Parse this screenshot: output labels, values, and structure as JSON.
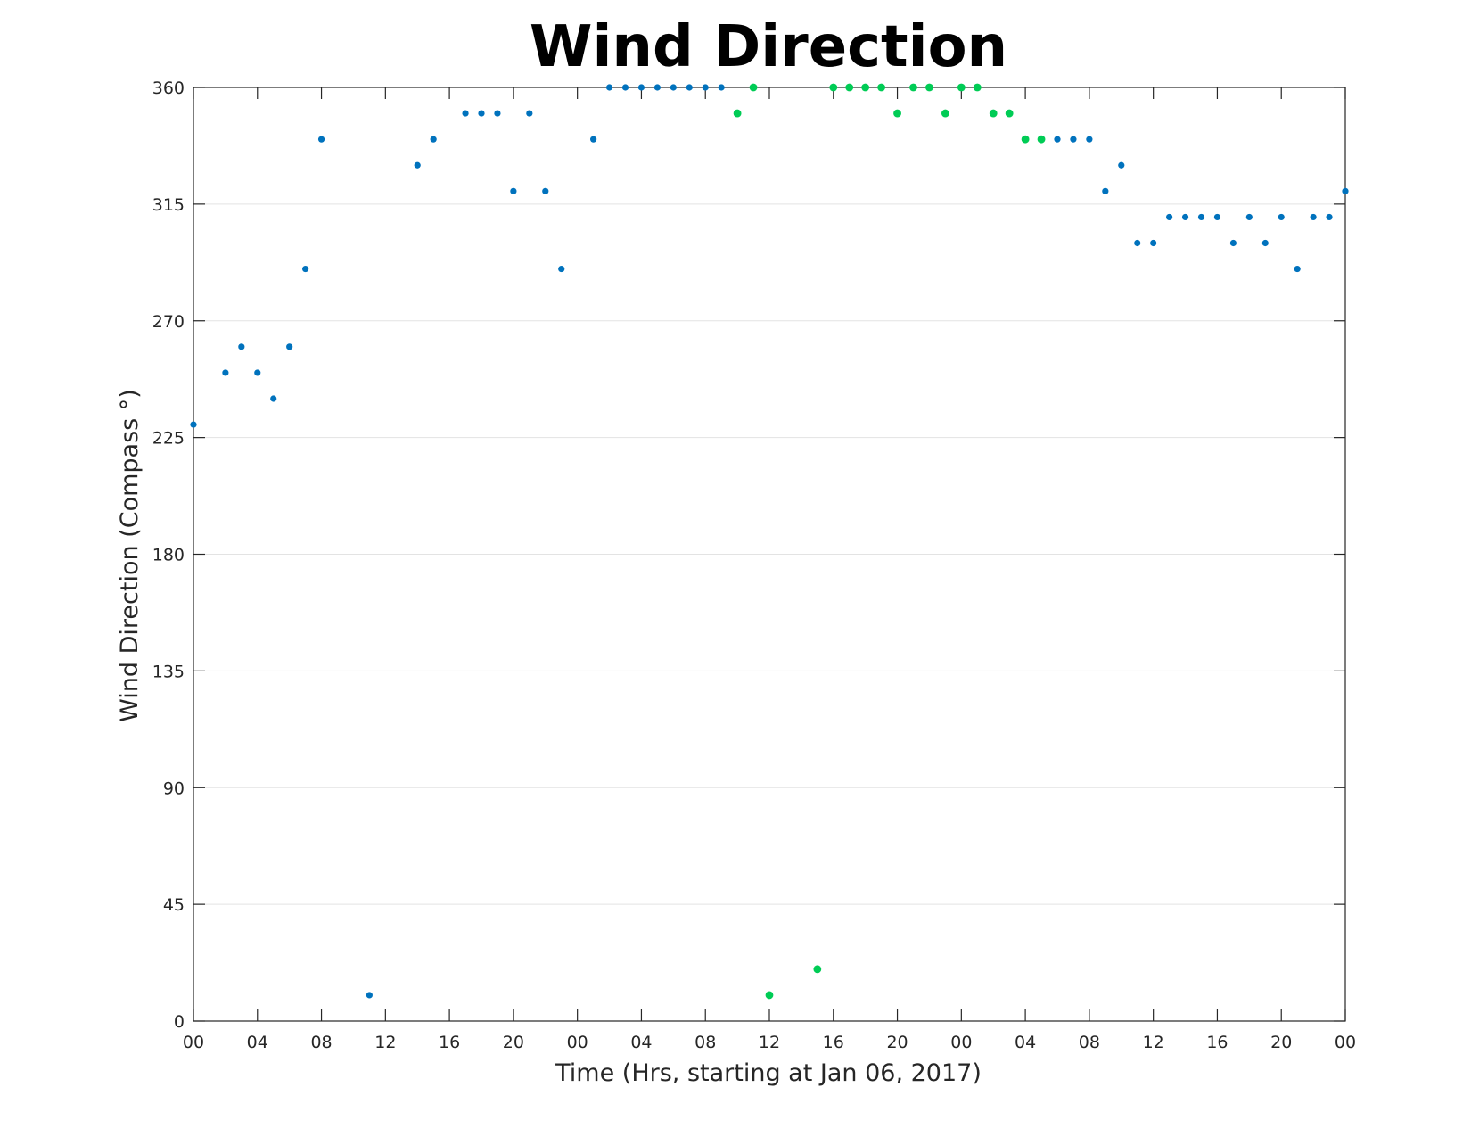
{
  "chart_data": {
    "type": "scatter",
    "title": "Wind Direction",
    "xlabel": "Time (Hrs, starting at Jan 06, 2017)",
    "ylabel": "Wind Direction (Compass °)",
    "xlim": [
      0,
      72
    ],
    "ylim": [
      0,
      360
    ],
    "x_ticks": [
      0,
      4,
      8,
      12,
      16,
      20,
      24,
      28,
      32,
      36,
      40,
      44,
      48,
      52,
      56,
      60,
      64,
      68,
      72
    ],
    "x_tick_labels": [
      "00",
      "04",
      "08",
      "12",
      "16",
      "20",
      "00",
      "04",
      "08",
      "12",
      "16",
      "20",
      "00",
      "04",
      "08",
      "12",
      "16",
      "20",
      "00"
    ],
    "y_ticks": [
      0,
      45,
      90,
      135,
      180,
      225,
      270,
      315,
      360
    ],
    "y_tick_labels": [
      "0",
      "45",
      "90",
      "135",
      "180",
      "225",
      "270",
      "315",
      "360"
    ],
    "grid": "horizontal",
    "series": [
      {
        "color": "#0072bd",
        "x": [
          0,
          2,
          3,
          4,
          5,
          6,
          7,
          8,
          11,
          14,
          15,
          17,
          18,
          19,
          20,
          21,
          22,
          23,
          25,
          26,
          27,
          28,
          29,
          30,
          31,
          32,
          33,
          54,
          55,
          56,
          57,
          58,
          59,
          60,
          61,
          62,
          63,
          64,
          65,
          66,
          67,
          68,
          69,
          70,
          71,
          72
        ],
        "y": [
          230,
          250,
          260,
          250,
          240,
          260,
          290,
          340,
          10,
          330,
          340,
          350,
          350,
          350,
          320,
          350,
          320,
          290,
          340,
          360,
          360,
          360,
          360,
          360,
          360,
          360,
          360,
          340,
          340,
          340,
          320,
          330,
          300,
          300,
          310,
          310,
          310,
          310,
          300,
          310,
          300,
          310,
          290,
          310,
          310,
          320
        ]
      },
      {
        "color": "#00cc55",
        "x": [
          34,
          35,
          36,
          39,
          40,
          41,
          42,
          43,
          44,
          45,
          46,
          47,
          48,
          49,
          50,
          51,
          52,
          53
        ],
        "y": [
          350,
          360,
          10,
          20,
          360,
          360,
          360,
          360,
          350,
          360,
          360,
          350,
          360,
          360,
          350,
          350,
          340,
          340
        ]
      }
    ]
  }
}
